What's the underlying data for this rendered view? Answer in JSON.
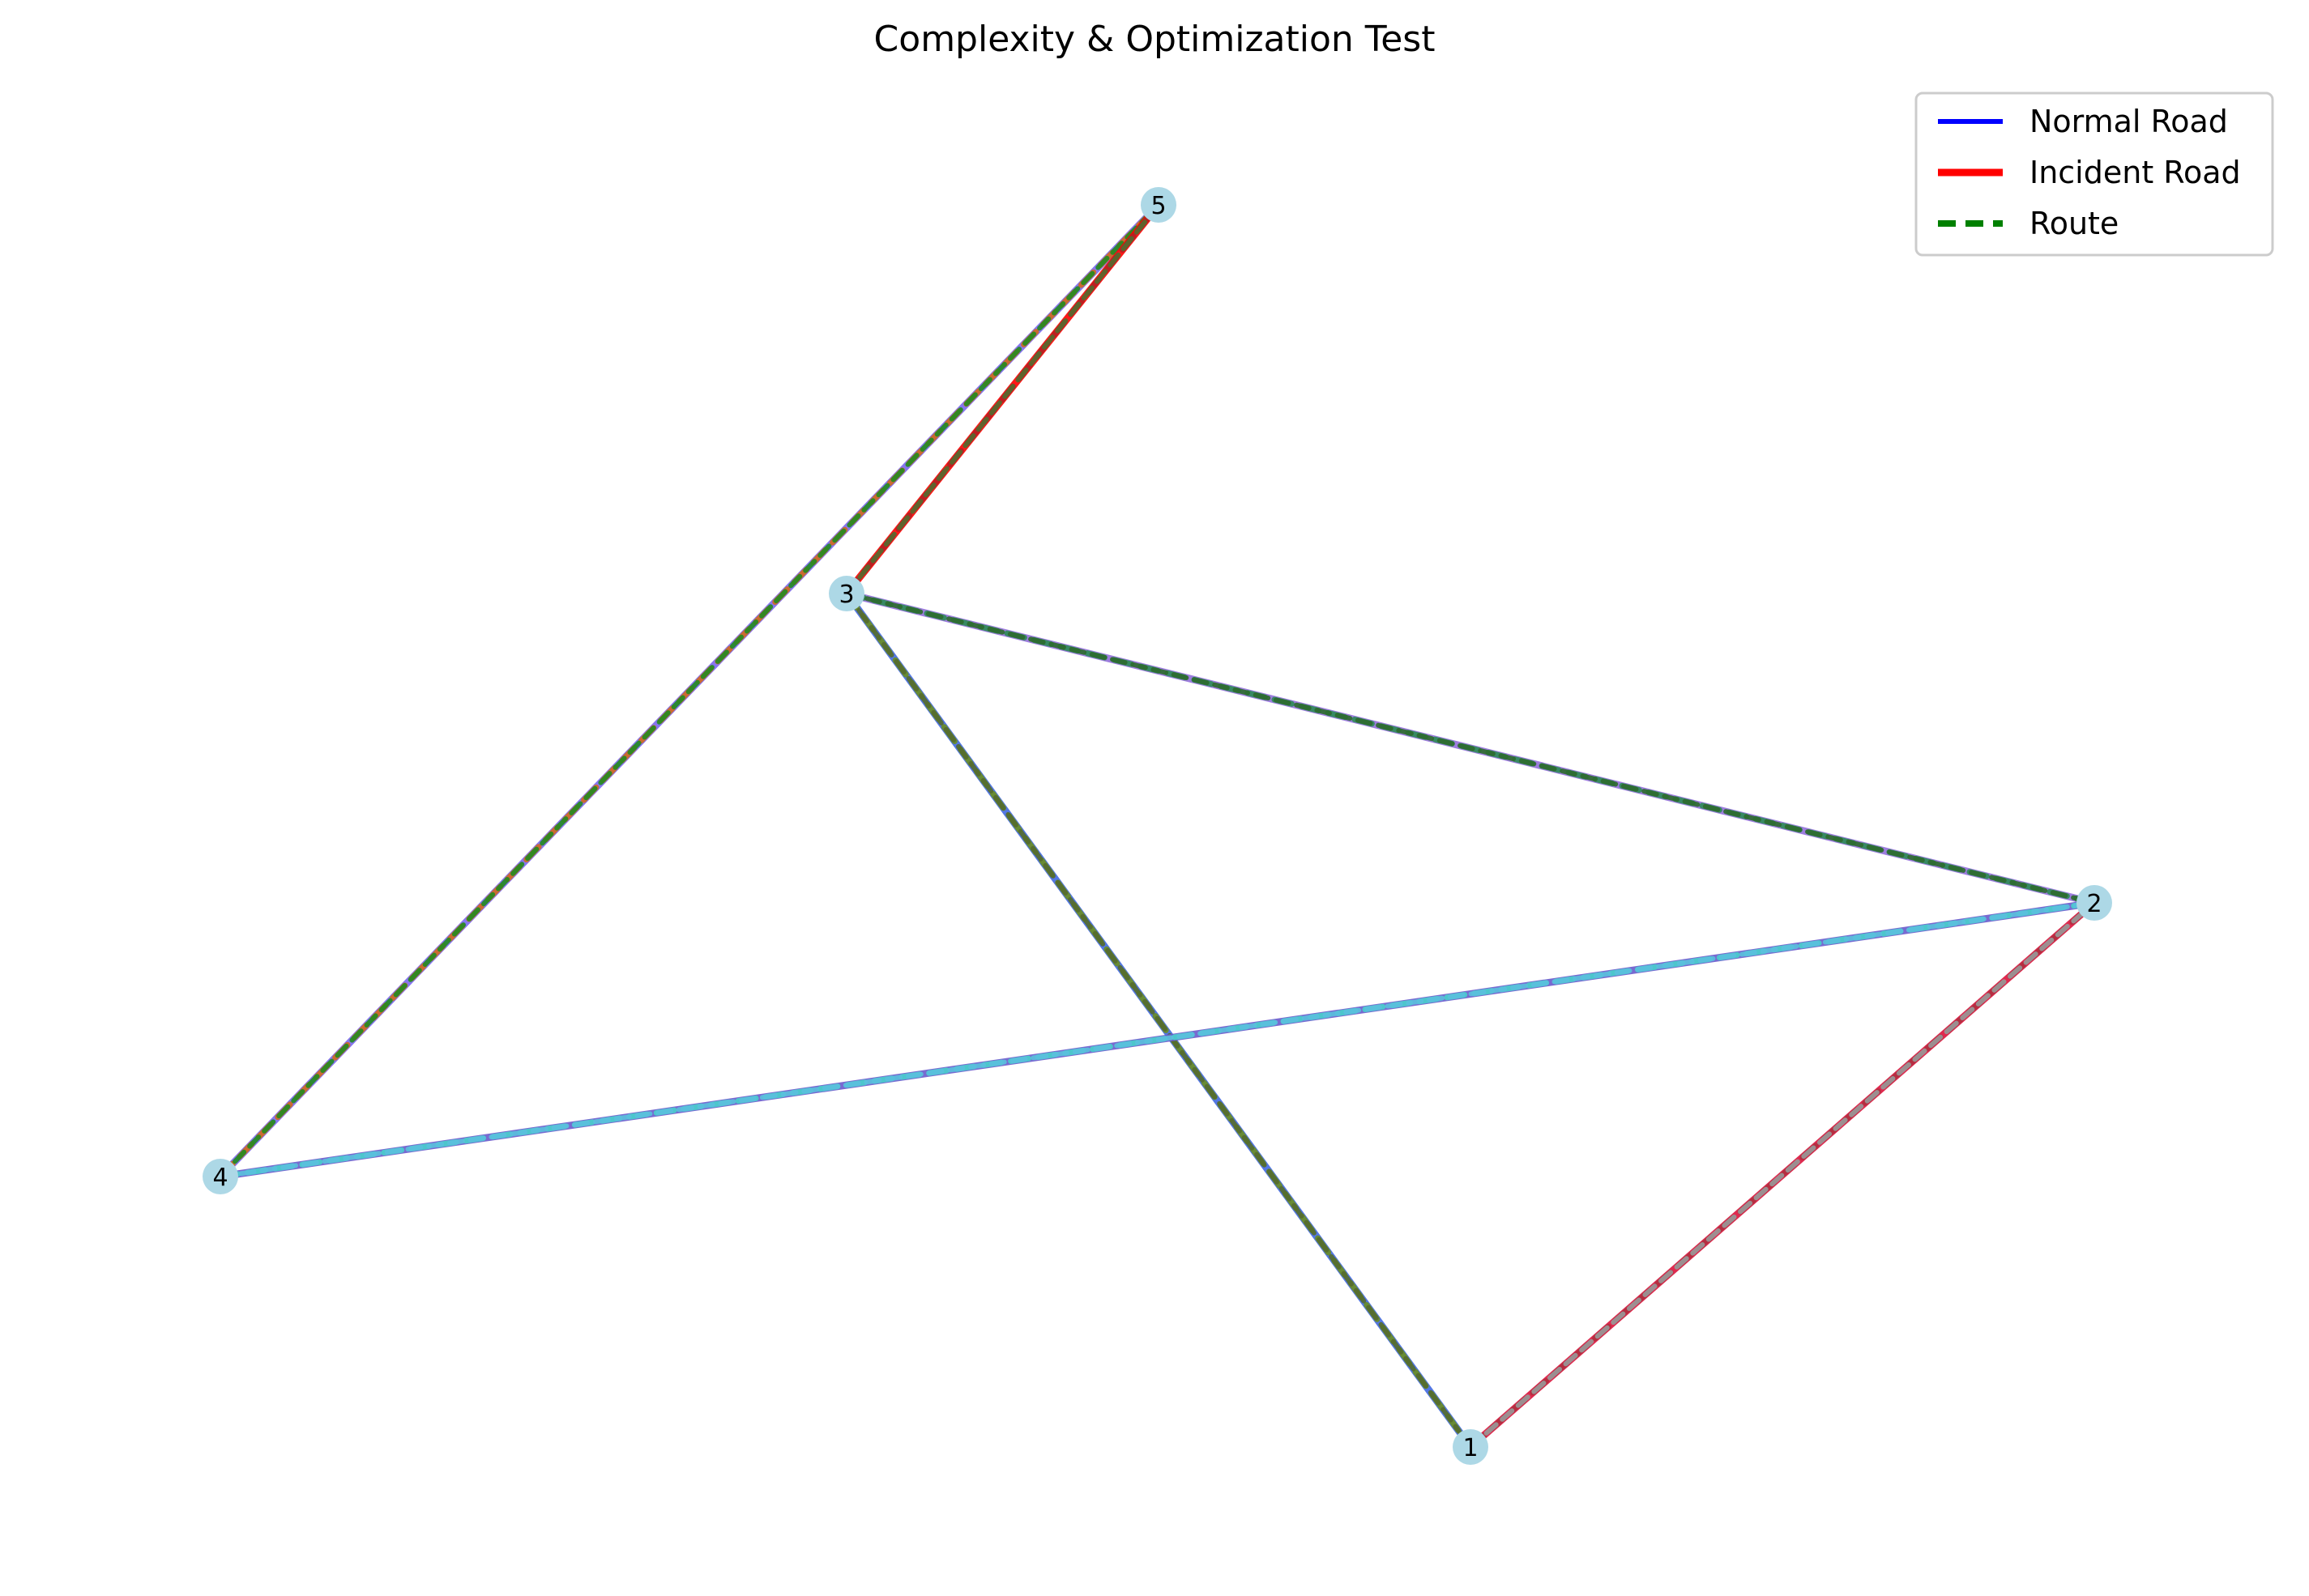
{
  "title": "Complexity & Optimization Test",
  "legend": {
    "items": [
      {
        "label": "Normal Road",
        "color": "#0000ff",
        "style": "solid"
      },
      {
        "label": "Incident Road",
        "color": "#ff0000",
        "style": "solid-thick"
      },
      {
        "label": "Route",
        "color": "#008000",
        "style": "dashed"
      }
    ]
  },
  "graph": {
    "node_color": "#add8e6",
    "nodes": [
      {
        "id": "1",
        "label": "1"
      },
      {
        "id": "2",
        "label": "2"
      },
      {
        "id": "3",
        "label": "3"
      },
      {
        "id": "4",
        "label": "4"
      },
      {
        "id": "5",
        "label": "5"
      }
    ],
    "edges": [
      {
        "from": "4",
        "to": "5",
        "colors": [
          "#7b68ee",
          "#d2691e",
          "#228b22"
        ]
      },
      {
        "from": "3",
        "to": "5",
        "colors": [
          "#ff0000",
          "#b22222",
          "#556b2f"
        ]
      },
      {
        "from": "3",
        "to": "2",
        "colors": [
          "#9370db",
          "#2e8b57",
          "#2e6b2e"
        ]
      },
      {
        "from": "3",
        "to": "1",
        "colors": [
          "#4169e1",
          "#6b8e23",
          "#556b2f"
        ]
      },
      {
        "from": "4",
        "to": "2",
        "colors": [
          "#6a5acd",
          "#48d1cc",
          "#5bc0de"
        ]
      },
      {
        "from": "1",
        "to": "2",
        "colors": [
          "#dc143c",
          "#b03040",
          "#999999"
        ]
      }
    ]
  }
}
